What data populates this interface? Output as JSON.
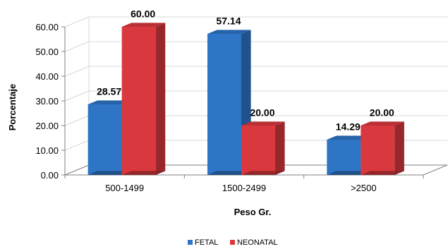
{
  "chart_data": {
    "type": "bar",
    "style": "3d-clustered-column",
    "categories": [
      "500-1499",
      "1500-2499",
      ">2500"
    ],
    "series": [
      {
        "name": "FETAL",
        "values": [
          28.57,
          57.14,
          14.29
        ],
        "color": "#2E75C6"
      },
      {
        "name": "NEONATAL",
        "values": [
          60.0,
          20.0,
          20.0
        ],
        "color": "#D9383E"
      }
    ],
    "data_labels": {
      "FETAL": [
        "28.57",
        "57.14",
        "14.29"
      ],
      "NEONATAL": [
        "60.00",
        "20.00",
        "20.00"
      ]
    },
    "title": "",
    "xlabel": "Peso Gr.",
    "ylabel": "Porcentaje",
    "ylim": [
      0,
      60
    ],
    "yticks": [
      "0.00",
      "10.00",
      "20.00",
      "30.00",
      "40.00",
      "50.00",
      "60.00"
    ],
    "grid": true,
    "legend_position": "bottom"
  }
}
